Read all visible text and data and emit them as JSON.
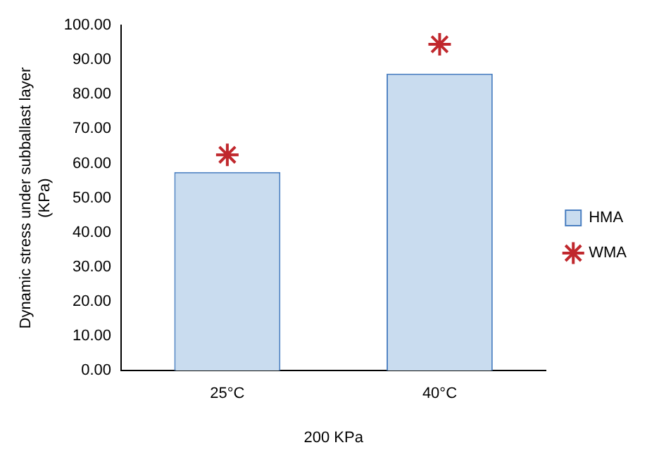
{
  "chart_data": {
    "type": "bar",
    "categories": [
      "25°C",
      "40°C"
    ],
    "xlabel": "200 KPa",
    "ylabel": "Dynamic stress under subballast layer (KPa)",
    "ylim": [
      0,
      100
    ],
    "yticks": [
      {
        "value": 0,
        "label": "0.00"
      },
      {
        "value": 10,
        "label": "10.00"
      },
      {
        "value": 20,
        "label": "20.00"
      },
      {
        "value": 30,
        "label": "30.00"
      },
      {
        "value": 40,
        "label": "40.00"
      },
      {
        "value": 50,
        "label": "50.00"
      },
      {
        "value": 60,
        "label": "60.00"
      },
      {
        "value": 70,
        "label": "70.00"
      },
      {
        "value": 80,
        "label": "80.00"
      },
      {
        "value": 90,
        "label": "90.00"
      },
      {
        "value": 100,
        "label": "100.00"
      }
    ],
    "series": [
      {
        "name": "HMA",
        "color": "#c9dcef",
        "values": [
          57.5,
          86
        ]
      },
      {
        "name": "WMA",
        "type": "scatter",
        "x": [
          "25°C",
          "40°C"
        ],
        "color": "#c0282d",
        "marker": "cross",
        "values": [
          62.5,
          94.5
        ]
      }
    ],
    "legend": "right",
    "grid": false
  }
}
